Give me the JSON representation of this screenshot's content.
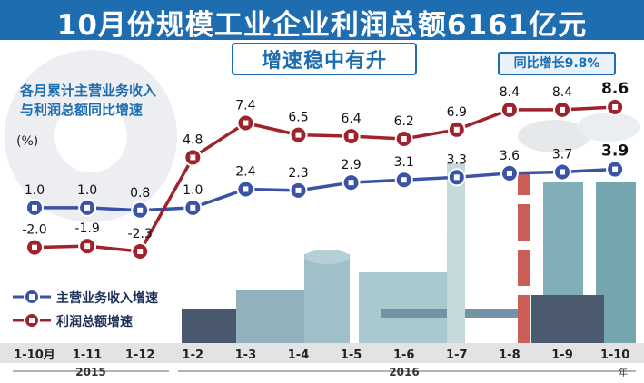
{
  "header": {
    "title": "10月份规模工业企业利润总额6161亿元",
    "subtitle": "增速稳中有升",
    "badge": "同比增长9.8%"
  },
  "chart_desc": {
    "line1": "各月累计主营业务收入",
    "line2": "与利润总额同比增速",
    "unit": "(%)"
  },
  "legend": [
    {
      "label": "主营业务收入增速",
      "color": "#3a53a4"
    },
    {
      "label": "利润总额增速",
      "color": "#a0222d"
    }
  ],
  "years": [
    "2015",
    "2016",
    "年"
  ],
  "chart_data": {
    "type": "line",
    "title": "10月份规模工业企业利润总额6161亿元",
    "subtitle": "增速稳中有升",
    "ylabel": "(%)",
    "x": [
      "1-10月",
      "1-11",
      "1-12",
      "1-2",
      "1-3",
      "1-4",
      "1-5",
      "1-6",
      "1-7",
      "1-8",
      "1-9",
      "1-10"
    ],
    "series": [
      {
        "name": "主营业务收入增速",
        "color": "#3a53a4",
        "values": [
          1.0,
          1.0,
          0.8,
          1.0,
          2.4,
          2.3,
          2.9,
          3.1,
          3.3,
          3.6,
          3.7,
          3.9
        ],
        "labels": [
          "1.0",
          "1.0",
          "0.8",
          "1.0",
          "2.4",
          "2.3",
          "2.9",
          "3.1",
          "3.3",
          "3.6",
          "3.7",
          "3.9"
        ]
      },
      {
        "name": "利润总额增速",
        "color": "#a0222d",
        "values": [
          -2.0,
          -1.9,
          -2.3,
          4.8,
          7.4,
          6.5,
          6.4,
          6.2,
          6.9,
          8.4,
          8.4,
          8.6
        ],
        "labels": [
          "-2.0",
          "-1.9",
          "-2.3",
          "4.8",
          "7.4",
          "6.5",
          "6.4",
          "6.2",
          "6.9",
          "8.4",
          "8.4",
          "8.6"
        ]
      }
    ],
    "ylim": [
      -3,
      9.5
    ],
    "grid": false
  }
}
